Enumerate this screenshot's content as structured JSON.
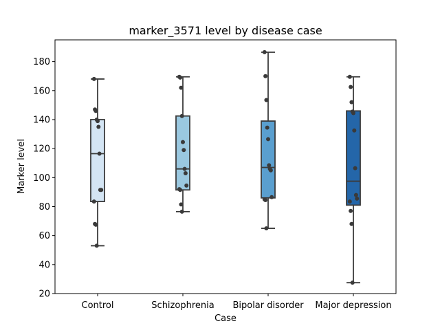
{
  "chart_data": {
    "type": "box",
    "title": "marker_3571 level by disease case",
    "xlabel": "Case",
    "ylabel": "Marker level",
    "ylim": [
      20,
      195
    ],
    "yticks": [
      20,
      40,
      60,
      80,
      100,
      120,
      140,
      160,
      180
    ],
    "grid": false,
    "categories": [
      "Control",
      "Schizophrenia",
      "Bipolar disorder",
      "Major depression"
    ],
    "series": [
      {
        "color": "#d4e5f4",
        "whisker_low": 53,
        "q1": 83.5,
        "median": 116.5,
        "q3": 140,
        "whisker_high": 168,
        "points": [
          168,
          147,
          146,
          140,
          139,
          135,
          116.5,
          91.5,
          91.5,
          83.5,
          68,
          67.5,
          53
        ]
      },
      {
        "color": "#9ac8e0",
        "whisker_low": 76.5,
        "q1": 91.5,
        "median": 106,
        "q3": 142.5,
        "whisker_high": 169.5,
        "points": [
          169.5,
          169,
          162,
          142.5,
          124.5,
          119,
          106,
          103,
          94.5,
          92,
          91.5,
          81.5,
          76.5
        ]
      },
      {
        "color": "#5a9fcf",
        "whisker_low": 65,
        "q1": 86,
        "median": 107,
        "q3": 139,
        "whisker_high": 186.5,
        "points": [
          186.5,
          170,
          153.5,
          134.5,
          126.5,
          108.5,
          106,
          105,
          86.5,
          85,
          84.5,
          65
        ]
      },
      {
        "color": "#2466a9",
        "whisker_low": 27.5,
        "q1": 81,
        "median": 97.5,
        "q3": 146,
        "whisker_high": 169.5,
        "points": [
          169.5,
          162.5,
          152,
          145.5,
          144.5,
          132.5,
          106.5,
          88,
          85.5,
          83.5,
          77,
          68,
          27.5
        ]
      }
    ]
  }
}
